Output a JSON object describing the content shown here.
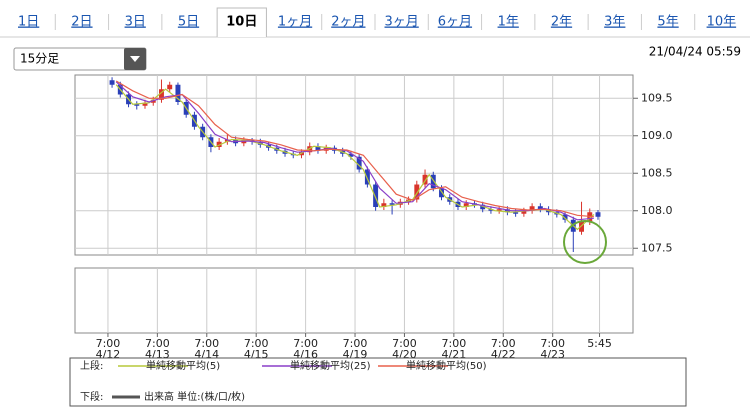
{
  "tabs": [
    "1日",
    "2日",
    "3日",
    "5日",
    "10日",
    "1ヶ月",
    "2ヶ月",
    "3ヶ月",
    "6ヶ月",
    "1年",
    "2年",
    "3年",
    "5年",
    "10年"
  ],
  "active_tab": "10日",
  "interval": "15分足",
  "timestamp": "21/04/24 05:59",
  "chart_data": {
    "type": "candlestick",
    "up_color": "#d9342b",
    "down_color": "#2a3fb8",
    "x": [
      2,
      6,
      10,
      14,
      18,
      22,
      26,
      30,
      34,
      38,
      42,
      46,
      50,
      54,
      58,
      62,
      66,
      70,
      74,
      78,
      82,
      86,
      90,
      94,
      98,
      102,
      106,
      110,
      114,
      118,
      122,
      126,
      130,
      134,
      138,
      142,
      146,
      150,
      154,
      158,
      162,
      166,
      170,
      174,
      178,
      182,
      186,
      190,
      194,
      198,
      202,
      206,
      210,
      214,
      218,
      222,
      226,
      230,
      234,
      238
    ],
    "open": [
      109.74,
      109.68,
      109.55,
      109.42,
      109.4,
      109.44,
      109.48,
      109.62,
      109.68,
      109.45,
      109.28,
      109.12,
      108.98,
      108.85,
      108.92,
      108.95,
      108.9,
      108.94,
      108.92,
      108.88,
      108.84,
      108.8,
      108.76,
      108.74,
      108.78,
      108.86,
      108.8,
      108.84,
      108.8,
      108.76,
      108.72,
      108.55,
      108.35,
      108.05,
      108.1,
      108.08,
      108.12,
      108.15,
      108.35,
      108.48,
      108.3,
      108.18,
      108.12,
      108.05,
      108.1,
      108.08,
      108.02,
      108.0,
      108.02,
      107.98,
      107.96,
      108.0,
      108.06,
      108.02,
      107.98,
      107.95,
      107.88,
      107.72,
      107.85,
      107.98
    ],
    "high": [
      109.78,
      109.72,
      109.59,
      109.46,
      109.48,
      109.52,
      109.75,
      109.72,
      109.71,
      109.49,
      109.32,
      109.16,
      109.02,
      108.97,
      109.02,
      108.99,
      108.98,
      108.97,
      108.96,
      108.92,
      108.88,
      108.84,
      108.8,
      108.82,
      108.91,
      108.9,
      108.88,
      108.87,
      108.84,
      108.8,
      108.76,
      108.59,
      108.39,
      108.16,
      108.14,
      108.16,
      108.19,
      108.4,
      108.55,
      108.52,
      108.34,
      108.22,
      108.16,
      108.14,
      108.13,
      108.12,
      108.06,
      108.06,
      108.06,
      108.02,
      108.04,
      108.1,
      108.1,
      108.06,
      108.02,
      107.99,
      107.92,
      108.12,
      108.03,
      108.01
    ],
    "low": [
      109.64,
      109.51,
      109.38,
      109.35,
      109.36,
      109.4,
      109.44,
      109.58,
      109.41,
      109.24,
      109.08,
      108.94,
      108.78,
      108.81,
      108.88,
      108.86,
      108.86,
      108.88,
      108.84,
      108.8,
      108.76,
      108.72,
      108.7,
      108.7,
      108.74,
      108.76,
      108.76,
      108.76,
      108.72,
      108.68,
      108.51,
      108.31,
      108.0,
      108.01,
      107.95,
      108.04,
      108.08,
      108.11,
      108.31,
      108.26,
      108.14,
      108.08,
      108.01,
      108.01,
      108.04,
      107.98,
      107.96,
      107.96,
      107.94,
      107.92,
      107.92,
      107.96,
      107.98,
      107.94,
      107.91,
      107.84,
      107.45,
      107.68,
      107.81,
      107.88
    ],
    "close": [
      109.68,
      109.55,
      109.42,
      109.4,
      109.44,
      109.48,
      109.62,
      109.68,
      109.45,
      109.28,
      109.12,
      108.98,
      108.85,
      108.92,
      108.95,
      108.9,
      108.94,
      108.92,
      108.88,
      108.84,
      108.8,
      108.76,
      108.74,
      108.78,
      108.86,
      108.8,
      108.84,
      108.8,
      108.76,
      108.72,
      108.55,
      108.35,
      108.05,
      108.1,
      108.08,
      108.12,
      108.15,
      108.35,
      108.48,
      108.3,
      108.18,
      108.12,
      108.05,
      108.1,
      108.08,
      108.02,
      108.0,
      108.02,
      107.98,
      107.96,
      108.0,
      108.06,
      108.02,
      107.98,
      107.95,
      107.88,
      107.72,
      107.85,
      107.98,
      107.92
    ],
    "series": [
      {
        "name": "単純移動平均(5)",
        "color": "#b7c83a",
        "x": [
          4,
          12,
          20,
          28,
          36,
          44,
          52,
          60,
          68,
          76,
          84,
          92,
          100,
          108,
          116,
          124,
          132,
          140,
          148,
          156,
          164,
          172,
          180,
          188,
          196,
          204,
          212,
          220,
          228,
          236
        ],
        "values": [
          109.68,
          109.42,
          109.44,
          109.62,
          109.45,
          109.12,
          108.85,
          108.95,
          108.94,
          108.88,
          108.8,
          108.74,
          108.86,
          108.84,
          108.76,
          108.55,
          108.05,
          108.08,
          108.15,
          108.48,
          108.18,
          108.05,
          108.08,
          108.0,
          107.98,
          108.0,
          108.02,
          107.95,
          107.75,
          107.95
        ]
      },
      {
        "name": "単純移動平均(25)",
        "color": "#8a3fc8",
        "x": [
          4,
          12,
          20,
          28,
          36,
          44,
          52,
          60,
          68,
          76,
          84,
          92,
          100,
          108,
          116,
          124,
          132,
          140,
          148,
          156,
          164,
          172,
          180,
          188,
          196,
          204,
          212,
          220,
          228,
          236
        ],
        "values": [
          109.72,
          109.52,
          109.45,
          109.52,
          109.55,
          109.3,
          109.02,
          108.92,
          108.93,
          108.91,
          108.84,
          108.78,
          108.8,
          108.83,
          108.8,
          108.66,
          108.3,
          108.1,
          108.12,
          108.36,
          108.28,
          108.12,
          108.08,
          108.04,
          108.0,
          108.0,
          108.03,
          107.98,
          107.88,
          107.9
        ]
      },
      {
        "name": "単純移動平均(50)",
        "color": "#e8604c",
        "x": [
          4,
          12,
          20,
          28,
          36,
          44,
          52,
          60,
          68,
          76,
          84,
          92,
          100,
          108,
          116,
          124,
          132,
          140,
          148,
          156,
          164,
          172,
          180,
          188,
          196,
          204,
          212,
          220,
          228,
          236
        ],
        "values": [
          109.73,
          109.6,
          109.5,
          109.5,
          109.55,
          109.4,
          109.15,
          108.98,
          108.95,
          108.93,
          108.88,
          108.81,
          108.8,
          108.82,
          108.81,
          108.74,
          108.48,
          108.22,
          108.14,
          108.28,
          108.32,
          108.18,
          108.12,
          108.07,
          108.03,
          108.01,
          108.02,
          108.0,
          107.94,
          107.92
        ]
      }
    ],
    "volume": {
      "name": "出来高 単位:(株/口/枚)",
      "color": "#555555"
    },
    "legend_upper": "上段:",
    "legend_lower": "下段:",
    "xlim": [
      -16,
      255
    ],
    "xticks": [
      {
        "value": 0,
        "label": "7:00",
        "date": "4/12"
      },
      {
        "value": 24,
        "label": "7:00",
        "date": "4/13"
      },
      {
        "value": 48,
        "label": "7:00",
        "date": "4/14"
      },
      {
        "value": 72,
        "label": "7:00",
        "date": "4/15"
      },
      {
        "value": 96,
        "label": "7:00",
        "date": "4/16"
      },
      {
        "value": 120,
        "label": "7:00",
        "date": "4/19"
      },
      {
        "value": 144,
        "label": "7:00",
        "date": "4/20"
      },
      {
        "value": 168,
        "label": "7:00",
        "date": "4/21"
      },
      {
        "value": 192,
        "label": "7:00",
        "date": "4/22"
      },
      {
        "value": 216,
        "label": "7:00",
        "date": "4/23"
      },
      {
        "value": 238.75,
        "label": "5:45"
      }
    ],
    "ylim": [
      107.41,
      109.81
    ],
    "yticks": [
      {
        "value": 107.5,
        "label": "107.5"
      },
      {
        "value": 108,
        "label": "108.0"
      },
      {
        "value": 108.5,
        "label": "108.5"
      },
      {
        "value": 109,
        "label": "109.0"
      },
      {
        "value": 109.5,
        "label": "109.5"
      }
    ],
    "grid": true
  }
}
